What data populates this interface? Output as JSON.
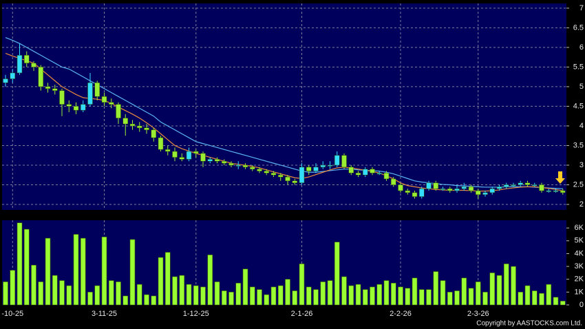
{
  "chart_data": [
    {
      "type": "candlestick",
      "open": [
        5.1,
        5.2,
        5.35,
        5.8,
        5.6,
        5.5,
        5.0,
        4.95,
        4.9,
        4.55,
        4.5,
        4.4,
        4.55,
        5.1,
        4.75,
        4.6,
        4.55,
        4.2,
        4.05,
        4.0,
        3.95,
        3.9,
        3.7,
        3.4,
        3.35,
        3.2,
        3.15,
        3.35,
        3.3,
        3.1,
        3.15,
        3.1,
        3.05,
        3.0,
        3.0,
        2.95,
        2.9,
        2.85,
        2.8,
        2.75,
        2.7,
        2.6,
        2.55,
        2.95,
        2.85,
        2.95,
        3.0,
        3.0,
        3.25,
        2.95,
        2.8,
        2.75,
        2.9,
        2.8,
        2.8,
        2.65,
        2.5,
        2.35,
        2.3,
        2.2,
        2.4,
        2.55,
        2.4,
        2.4,
        2.35,
        2.4,
        2.45,
        2.35,
        2.25,
        2.3,
        2.4,
        2.45,
        2.5,
        2.5,
        2.55,
        2.5,
        2.5,
        2.35,
        2.35,
        2.35
      ],
      "high": [
        5.3,
        5.45,
        6.1,
        5.9,
        5.65,
        5.55,
        5.1,
        5.05,
        4.95,
        4.65,
        4.6,
        4.65,
        5.35,
        5.15,
        4.85,
        4.7,
        4.6,
        4.3,
        4.15,
        4.1,
        4.05,
        3.95,
        3.75,
        3.5,
        3.45,
        3.3,
        3.45,
        3.4,
        3.35,
        3.2,
        3.2,
        3.15,
        3.1,
        3.1,
        3.05,
        3.0,
        2.95,
        2.9,
        2.85,
        2.8,
        2.75,
        2.65,
        3.05,
        3.0,
        3.05,
        3.1,
        3.1,
        3.35,
        3.3,
        3.0,
        2.85,
        2.95,
        2.95,
        2.85,
        2.85,
        2.7,
        2.55,
        2.4,
        2.35,
        2.45,
        2.6,
        2.6,
        2.45,
        2.45,
        2.5,
        2.55,
        2.5,
        2.4,
        2.35,
        2.45,
        2.5,
        2.55,
        2.55,
        2.6,
        2.6,
        2.55,
        2.55,
        2.4,
        2.4,
        2.4
      ],
      "low": [
        5.0,
        5.1,
        5.3,
        5.5,
        5.4,
        4.9,
        4.85,
        4.8,
        4.25,
        4.35,
        4.3,
        4.35,
        4.5,
        4.65,
        4.5,
        4.45,
        4.05,
        3.75,
        3.9,
        3.85,
        3.8,
        3.6,
        3.35,
        3.25,
        3.1,
        3.1,
        3.1,
        3.2,
        2.95,
        3.05,
        3.05,
        3.0,
        2.95,
        2.9,
        2.9,
        2.85,
        2.8,
        2.75,
        2.7,
        2.6,
        2.5,
        2.5,
        2.5,
        2.75,
        2.8,
        2.9,
        2.9,
        2.95,
        2.9,
        2.75,
        2.7,
        2.7,
        2.75,
        2.75,
        2.6,
        2.45,
        2.3,
        2.25,
        2.15,
        2.15,
        2.35,
        2.35,
        2.35,
        2.3,
        2.3,
        2.35,
        2.3,
        2.15,
        2.2,
        2.25,
        2.35,
        2.4,
        2.45,
        2.45,
        2.45,
        2.45,
        2.3,
        2.3,
        2.3,
        2.25
      ],
      "close": [
        5.2,
        5.35,
        5.8,
        5.6,
        5.5,
        5.0,
        4.95,
        4.9,
        4.55,
        4.5,
        4.4,
        4.55,
        5.1,
        4.75,
        4.6,
        4.55,
        4.2,
        4.05,
        4.0,
        3.95,
        3.9,
        3.7,
        3.4,
        3.35,
        3.2,
        3.15,
        3.35,
        3.3,
        3.1,
        3.15,
        3.1,
        3.05,
        3.0,
        3.0,
        2.95,
        2.9,
        2.85,
        2.8,
        2.75,
        2.7,
        2.6,
        2.55,
        2.95,
        2.85,
        2.95,
        3.0,
        3.0,
        3.25,
        2.95,
        2.8,
        2.75,
        2.9,
        2.8,
        2.8,
        2.65,
        2.5,
        2.35,
        2.3,
        2.2,
        2.4,
        2.55,
        2.4,
        2.4,
        2.35,
        2.4,
        2.45,
        2.35,
        2.25,
        2.3,
        2.4,
        2.45,
        2.5,
        2.5,
        2.55,
        2.5,
        2.5,
        2.35,
        2.35,
        2.35,
        2.3
      ],
      "up_color": "#33ddff",
      "down_color": "#99ee33",
      "series": [
        {
          "color": "#5ab4f0",
          "values": [
            6.25,
            6.18,
            6.1,
            6.0,
            5.9,
            5.8,
            5.7,
            5.6,
            5.5,
            5.45,
            5.35,
            5.25,
            5.15,
            5.05,
            4.95,
            4.85,
            4.75,
            4.65,
            4.55,
            4.45,
            4.35,
            4.25,
            4.1,
            4.0,
            3.9,
            3.8,
            3.7,
            3.6,
            3.55,
            3.5,
            3.45,
            3.4,
            3.35,
            3.3,
            3.25,
            3.2,
            3.15,
            3.1,
            3.05,
            3.0,
            2.95,
            2.9,
            2.85,
            2.82,
            2.82,
            2.84,
            2.86,
            2.88,
            2.9,
            2.9,
            2.88,
            2.87,
            2.86,
            2.85,
            2.82,
            2.78,
            2.72,
            2.66,
            2.6,
            2.57,
            2.55,
            2.53,
            2.51,
            2.5,
            2.48,
            2.47,
            2.46,
            2.45,
            2.44,
            2.44,
            2.44,
            2.45,
            2.45,
            2.45,
            2.45,
            2.44,
            2.43,
            2.42,
            2.41,
            2.4
          ]
        },
        {
          "color": "#e88a3c",
          "values": [
            5.85,
            5.78,
            5.72,
            5.66,
            5.6,
            5.45,
            5.3,
            5.15,
            5.0,
            4.9,
            4.8,
            4.72,
            4.7,
            4.68,
            4.65,
            4.57,
            4.48,
            4.39,
            4.3,
            4.2,
            4.08,
            3.95,
            3.8,
            3.65,
            3.5,
            3.42,
            3.36,
            3.3,
            3.25,
            3.2,
            3.15,
            3.1,
            3.05,
            3.02,
            3.0,
            2.97,
            2.93,
            2.88,
            2.83,
            2.78,
            2.73,
            2.68,
            2.66,
            2.7,
            2.76,
            2.82,
            2.88,
            2.93,
            2.95,
            2.93,
            2.9,
            2.87,
            2.84,
            2.8,
            2.73,
            2.65,
            2.55,
            2.48,
            2.45,
            2.42,
            2.4,
            2.38,
            2.37,
            2.36,
            2.36,
            2.36,
            2.35,
            2.34,
            2.34,
            2.35,
            2.37,
            2.4,
            2.42,
            2.44,
            2.45,
            2.45,
            2.43,
            2.41,
            2.38,
            2.35
          ]
        }
      ],
      "ylim": [
        1.86,
        7.12
      ],
      "yticks": [
        2,
        2.5,
        3,
        3.5,
        4,
        4.5,
        5,
        5.5,
        6,
        6.5,
        7
      ],
      "grid": true
    },
    {
      "type": "bar",
      "values": [
        1800,
        2700,
        6400,
        5900,
        3100,
        1800,
        5200,
        2300,
        1900,
        1500,
        5500,
        5200,
        1000,
        1500,
        5300,
        1900,
        1800,
        700,
        5100,
        1600,
        800,
        700,
        3700,
        4100,
        2200,
        2300,
        1600,
        1500,
        1400,
        3900,
        1800,
        1100,
        1000,
        1700,
        2800,
        1400,
        1200,
        800,
        1400,
        1500,
        2000,
        1100,
        3200,
        1400,
        1200,
        1800,
        1900,
        4900,
        2200,
        1500,
        1600,
        1200,
        1400,
        1600,
        1900,
        1700,
        1400,
        1300,
        2100,
        1200,
        1200,
        2600,
        1900,
        1000,
        1100,
        2100,
        1300,
        1800,
        1000,
        2500,
        2300,
        3200,
        3000,
        1000,
        1500,
        1100,
        900,
        1600,
        600,
        300
      ],
      "color": "#99ff33",
      "ylim": [
        0,
        6600
      ],
      "yticks": [
        0,
        {
          "value": 1000,
          "label": "1K"
        },
        {
          "value": 2000,
          "label": "2K"
        },
        {
          "value": 3000,
          "label": "3K"
        },
        {
          "value": 4000,
          "label": "4K"
        },
        {
          "value": 5000,
          "label": "5K"
        },
        {
          "value": 6000,
          "label": "6K"
        }
      ],
      "xticks": [
        {
          "value": 1,
          "label": "-10-25"
        },
        {
          "value": 14,
          "label": "3-11-25"
        },
        {
          "value": 27,
          "label": "1-12-25"
        },
        {
          "value": 42,
          "label": "2-1-26"
        },
        {
          "value": 56,
          "label": "2-2-26"
        },
        {
          "value": 67,
          "label": "2-3-26"
        }
      ],
      "grid": true,
      "copyright": "Copyright by AASTOCKS.com Ltd."
    }
  ]
}
